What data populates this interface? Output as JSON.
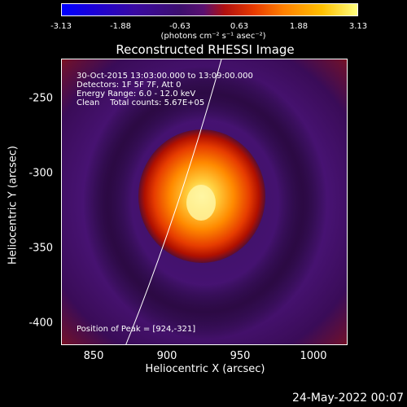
{
  "colorbar": {
    "ticks": [
      "-3.13",
      "-1.88",
      "-0.63",
      "0.63",
      "1.88",
      "3.13"
    ],
    "units": "(photons cm⁻² s⁻¹ asec⁻²)"
  },
  "title": "Reconstructed RHESSI Image",
  "info": {
    "line1": "30-Oct-2015 13:03:00.000 to 13:09:00.000",
    "line2": "Detectors: 1F 5F 7F, Att 0",
    "line3": "Energy Range: 6.0 - 12.0 keV",
    "line4": "Clean    Total counts: 5.67E+05"
  },
  "peak_text": "Position of Peak = [924,-321]",
  "axes": {
    "xlabel": "Heliocentric X (arcsec)",
    "ylabel": "Heliocentric Y (arcsec)",
    "xticks": [
      "850",
      "900",
      "950",
      "1000"
    ],
    "yticks": [
      "-250",
      "-300",
      "-350",
      "-400"
    ]
  },
  "timestamp": "24-May-2022 00:07",
  "colors": {
    "background": "#000000",
    "halo": "#4a1478",
    "core_outer": "#c21800",
    "core_mid": "#ff6a00",
    "core_peak": "#ffffb0",
    "limb_line": "#ffffff"
  }
}
